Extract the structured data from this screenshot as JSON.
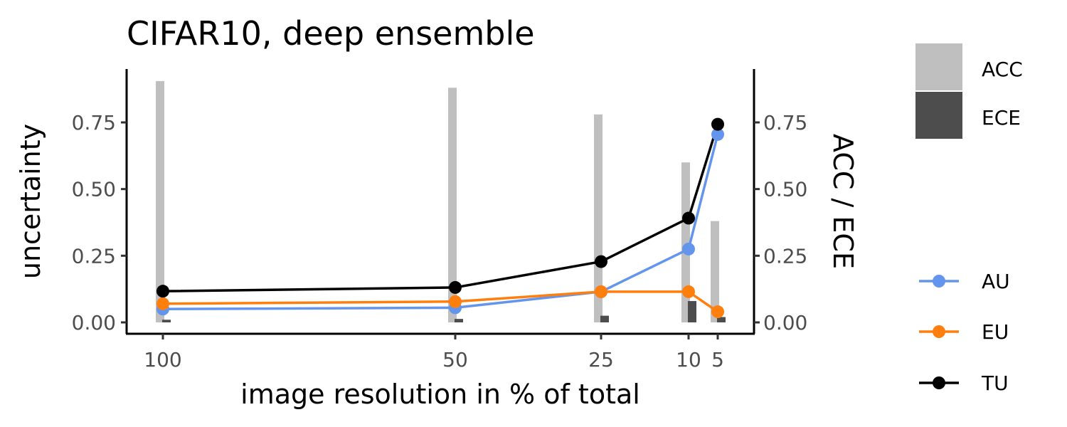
{
  "chart_data": {
    "type": "line",
    "title": "CIFAR10, deep ensemble",
    "xlabel": "image resolution in % of total",
    "ylabel": "uncertainty",
    "y2label": "ACC / ECE",
    "x": [
      100,
      50,
      25,
      10,
      5
    ],
    "x_tick_labels": [
      "100",
      "50",
      "25",
      "10",
      "5"
    ],
    "y_ticks": [
      0.0,
      0.25,
      0.5,
      0.75
    ],
    "y_tick_labels": [
      "0.00",
      "0.25",
      "0.50",
      "0.75"
    ],
    "y2_ticks": [
      0.0,
      0.25,
      0.5,
      0.75
    ],
    "y2_tick_labels": [
      "0.00",
      "0.25",
      "0.50",
      "0.75"
    ],
    "ylim": [
      -0.04,
      0.94
    ],
    "grid": false,
    "legend_position": "right",
    "bars": [
      {
        "name": "ACC",
        "color": "#bfbfbf",
        "values": [
          0.905,
          0.88,
          0.78,
          0.6,
          0.38
        ]
      },
      {
        "name": "ECE",
        "color": "#4d4d4d",
        "values": [
          0.01,
          0.013,
          0.025,
          0.08,
          0.02
        ]
      }
    ],
    "series": [
      {
        "name": "AU",
        "color": "#6495ED",
        "values": [
          0.05,
          0.055,
          0.115,
          0.275,
          0.705
        ]
      },
      {
        "name": "EU",
        "color": "#FF7F0E",
        "values": [
          0.07,
          0.078,
          0.115,
          0.115,
          0.04
        ]
      },
      {
        "name": "TU",
        "color": "#000000",
        "values": [
          0.117,
          0.131,
          0.228,
          0.391,
          0.743
        ]
      }
    ]
  }
}
